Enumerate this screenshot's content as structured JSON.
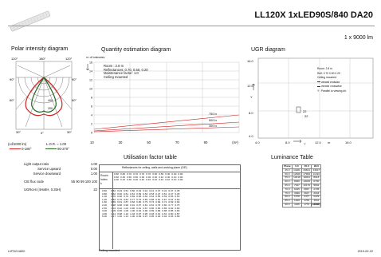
{
  "header": {
    "title": "LL120X 1xLED90S/840 DA20",
    "subtitle": "1 x 9000 lm"
  },
  "polar": {
    "title": "Polar intensity diagram",
    "angles": [
      "120°",
      "180°",
      "120°",
      "90°",
      "90°",
      "60°",
      "60°",
      "30°",
      "0°",
      "30°"
    ],
    "ring_values": [
      "400",
      "200"
    ],
    "unit": "(cd/1000 lm)",
    "lor": "L.O.R. = 1.00",
    "legend": [
      {
        "label": "0-180°",
        "color": "#cc2222"
      },
      {
        "label": "90-270°",
        "color": "#226622"
      }
    ]
  },
  "quantity": {
    "title": "Quantity estimation diagram",
    "y_label": "nr. of luminaires",
    "info": [
      "Room : 2.8 m",
      "Reflectances: 0.70, 0.50, 0.20",
      "Maintenance factor: 1.0",
      "Ceiling mounted"
    ],
    "y_ticks": [
      "16",
      "14",
      "12",
      "10",
      "8",
      "6",
      "4",
      "2",
      "0"
    ],
    "x_ticks": [
      "10",
      "30",
      "50",
      "70",
      "90",
      "(m²)"
    ],
    "line_labels": [
      "750 lx",
      "500 lx",
      "300 lx"
    ]
  },
  "ugr": {
    "title": "UGR diagram",
    "y_ticks": [
      "16.0",
      "12.0",
      "8.0",
      "4.0"
    ],
    "x_ticks": [
      "4.0",
      "8.0",
      "12.0",
      "m",
      "16.0"
    ],
    "y_axis_label": "Y",
    "x_axis_label": "X",
    "legend": [
      "Room: 2.8 m",
      "Refl: 0.70 0.50 0.20",
      "Ceiling mounted",
      "viewed endwise",
      "viewed crosswise",
      "Y : Parallel to viewing dir."
    ],
    "markers": [
      "22",
      "22"
    ]
  },
  "specs": {
    "rows": [
      {
        "label": "Light output ratio",
        "value": "1.00"
      },
      {
        "label": "Service upward",
        "value": "0.00"
      },
      {
        "label": "Service downward",
        "value": "1.00"
      },
      {
        "label": "CIE flux code",
        "value": "55 90 99 100 100"
      },
      {
        "label": "UGRcen (4Hx8H, 0.25H)",
        "value": "22"
      }
    ]
  },
  "utilisation": {
    "title": "Utilisation factor table",
    "caption": "Reflectances for ceiling, walls and working plane (CIE)",
    "room_header": [
      "Room",
      "Index",
      "k"
    ],
    "refl_rows": [
      [
        "0.80",
        "0.80",
        "0.70",
        "0.70",
        "0.70",
        "0.70",
        "0.50",
        "0.50",
        "0.30",
        "0.30",
        "0.00"
      ],
      [
        "0.50",
        "0.30",
        "0.50",
        "0.50",
        "0.30",
        "0.30",
        "0.30",
        "0.10",
        "0.30",
        "0.10",
        "0.00"
      ],
      [
        "0.30",
        "0.10",
        "0.30",
        "0.20",
        "0.10",
        "0.10",
        "0.10",
        "0.10",
        "0.10",
        "0.10",
        "0.00"
      ]
    ],
    "rows": [
      [
        "0.60",
        "0.52",
        "0.49",
        "0.51",
        "0.50",
        "0.49",
        "0.42",
        "0.41",
        "0.37",
        "0.41",
        "0.37",
        "0.35"
      ],
      [
        "0.80",
        "0.62",
        "0.60",
        "0.61",
        "0.61",
        "0.59",
        "0.52",
        "0.53",
        "0.47",
        "0.51",
        "0.47",
        "0.45"
      ],
      [
        "1.00",
        "0.70",
        "0.68",
        "0.70",
        "0.69",
        "0.68",
        "0.62",
        "0.63",
        "0.55",
        "0.59",
        "0.55",
        "0.53"
      ],
      [
        "1.25",
        "0.82",
        "0.75",
        "0.81",
        "0.77",
        "0.76",
        "0.69",
        "0.68",
        "0.61",
        "0.67",
        "0.61",
        "0.60"
      ],
      [
        "1.50",
        "0.89",
        "0.81",
        "0.87",
        "0.83",
        "0.80",
        "0.79",
        "0.73",
        "0.69",
        "0.72",
        "0.69",
        "0.66"
      ],
      [
        "2.00",
        "0.98",
        "0.88",
        "0.96",
        "0.91",
        "0.87",
        "0.81",
        "0.81",
        "0.78",
        "0.80",
        "0.77",
        "0.75"
      ],
      [
        "2.50",
        "1.04",
        "0.92",
        "1.02",
        "0.96",
        "0.91",
        "0.87",
        "0.86",
        "0.83",
        "0.85",
        "0.82",
        "0.80"
      ],
      [
        "3.00",
        "1.09",
        "0.95",
        "1.06",
        "1.00",
        "0.94",
        "0.90",
        "0.89",
        "0.86",
        "0.88",
        "0.85",
        "0.83"
      ],
      [
        "4.00",
        "1.14",
        "0.98",
        "1.10",
        "1.03",
        "0.97",
        "0.95",
        "0.93",
        "0.91",
        "0.91",
        "0.90",
        "0.87"
      ],
      [
        "5.00",
        "1.17",
        "1.00",
        "1.13",
        "1.06",
        "0.99",
        "0.97",
        "0.95",
        "0.93",
        "0.94",
        "0.93",
        "0.89"
      ]
    ],
    "footer": "Ceiling mounted"
  },
  "luminance": {
    "title": "Luminance Table",
    "header": [
      "Plane",
      "0.0",
      "45.0",
      "90.0"
    ],
    "rows": [
      [
        "45.0",
        "14001",
        "20841",
        "13647"
      ],
      [
        "50.0",
        "12669",
        "17960",
        "11316"
      ],
      [
        "55.0",
        "10418",
        "16021",
        "8918"
      ],
      [
        "60.0",
        "8920",
        "13015",
        "6790"
      ],
      [
        "65.0",
        "7647",
        "10176",
        "5802"
      ],
      [
        "70.0",
        "6225",
        "6667",
        "2705"
      ],
      [
        "75.0",
        "3099",
        "3917",
        "2944"
      ],
      [
        "80.0",
        "1678",
        "2477",
        "2229"
      ],
      [
        "85.0",
        "1409",
        "1763",
        "1941"
      ],
      [
        "90.0",
        "1166",
        "1774",
        "2096"
      ]
    ],
    "unit": "(cd/m2)"
  },
  "footer": {
    "code": "LVP0211800",
    "date": "2019-02-22"
  },
  "colors": {
    "red": "#cc2222",
    "green": "#226622",
    "grid": "#999999"
  }
}
